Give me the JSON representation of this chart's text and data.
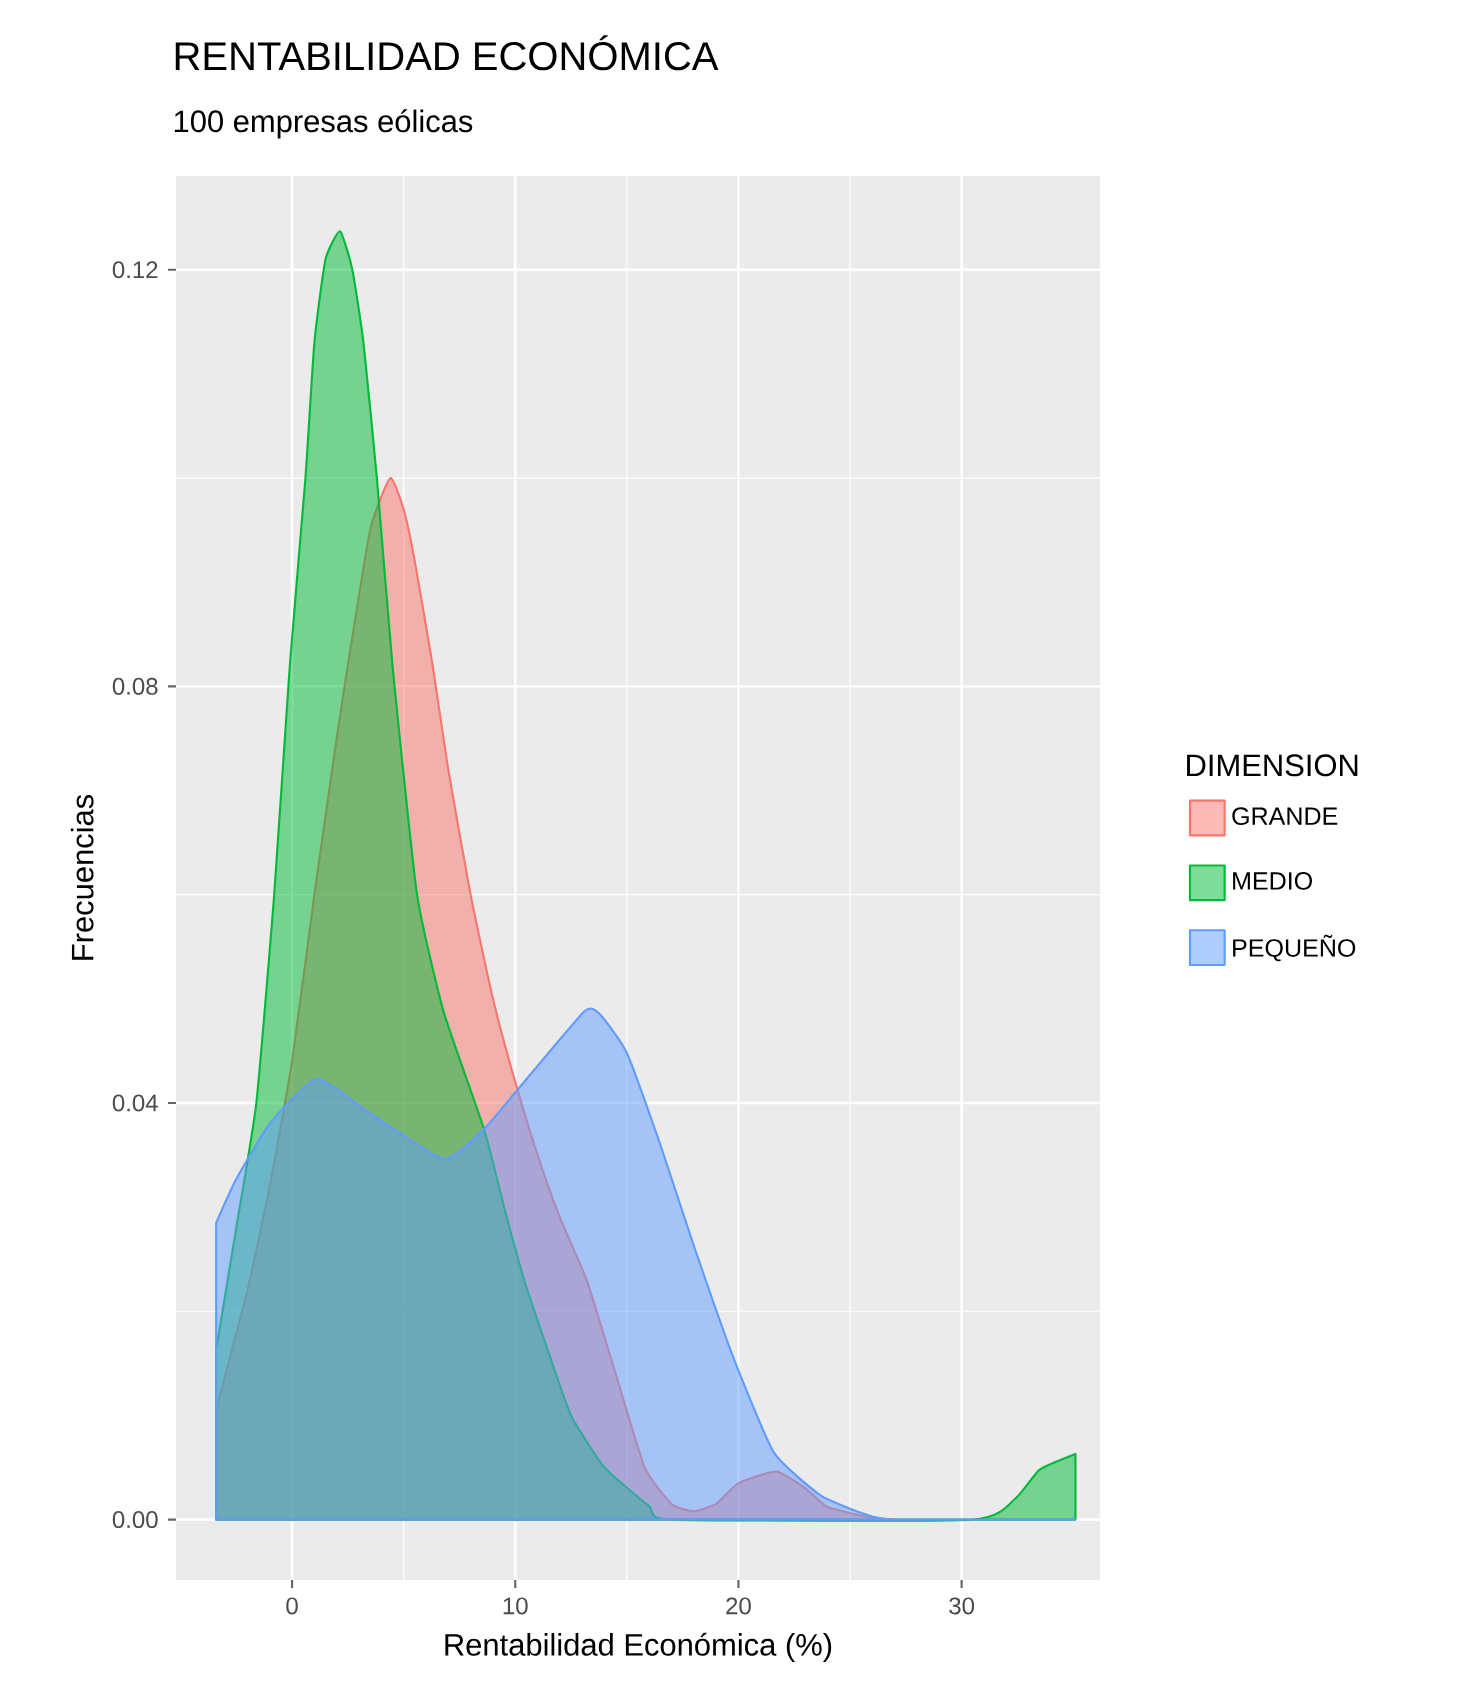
{
  "chart_data": {
    "type": "area",
    "title": "RENTABILIDAD ECONÓMICA",
    "subtitle": "100 empresas eólicas",
    "xlabel": "Rentabilidad Económica (%)",
    "ylabel": "Frecuencias",
    "legend_title": "DIMENSION",
    "legend": "right",
    "grid": true,
    "xlim": [
      -5.2,
      36.2
    ],
    "ylim": [
      -0.0058,
      0.129
    ],
    "xticks": [
      0,
      10,
      20,
      30
    ],
    "yticks": [
      {
        "value": 0,
        "label": "0.00"
      },
      0.04,
      0.08,
      0.12
    ],
    "series": [
      {
        "name": "GRANDE",
        "color": "#f8766d",
        "x": [
          -3.4,
          -2,
          -1,
          0,
          1,
          2,
          2.5,
          3.5,
          4.4,
          5,
          5.5,
          6.3,
          7,
          8,
          9,
          10,
          11,
          12,
          13.2,
          14.5,
          15.8,
          17,
          18,
          19,
          20,
          21.7,
          23,
          24,
          25.7,
          27
        ],
        "values": [
          0.0106,
          0.022,
          0.032,
          0.044,
          0.06,
          0.075,
          0.082,
          0.095,
          0.1,
          0.097,
          0.092,
          0.082,
          0.072,
          0.06,
          0.05,
          0.042,
          0.035,
          0.029,
          0.023,
          0.014,
          0.005,
          0.0015,
          0.0008,
          0.0015,
          0.0035,
          0.0046,
          0.003,
          0.0012,
          0.0003,
          0
        ]
      },
      {
        "name": "MEDIO",
        "color": "#00ba38",
        "x": [
          -3.4,
          -2.5,
          -1.6,
          -0.8,
          -0.1,
          0.6,
          1.0,
          1.5,
          2.15,
          2.7,
          3.2,
          3.8,
          4.5,
          5.6,
          6.8,
          8.6,
          9.5,
          10.4,
          11.5,
          12.5,
          14,
          16,
          17,
          30.5,
          32.4,
          33.5,
          35.1
        ],
        "values": [
          0.0163,
          0.028,
          0.04,
          0.06,
          0.082,
          0.1,
          0.113,
          0.121,
          0.1237,
          0.12,
          0.113,
          0.1,
          0.082,
          0.06,
          0.0487,
          0.0375,
          0.03,
          0.023,
          0.016,
          0.01,
          0.005,
          0.0013,
          0,
          0,
          0.002,
          0.0048,
          0.0063
        ]
      },
      {
        "name": "PEQUEÑO",
        "color": "#619cff",
        "x": [
          -3.4,
          -2.5,
          -1.0,
          1.1,
          3.5,
          6.8,
          8.6,
          10,
          13.1,
          13.8,
          15,
          16.5,
          18,
          19.8,
          21.6,
          23.7,
          25.7,
          27,
          35.1
        ],
        "values": [
          0.0285,
          0.0327,
          0.038,
          0.0423,
          0.039,
          0.0346,
          0.0375,
          0.041,
          0.0488,
          0.0485,
          0.0448,
          0.036,
          0.0263,
          0.0154,
          0.0064,
          0.0023,
          0.0005,
          0,
          0
        ]
      }
    ]
  }
}
